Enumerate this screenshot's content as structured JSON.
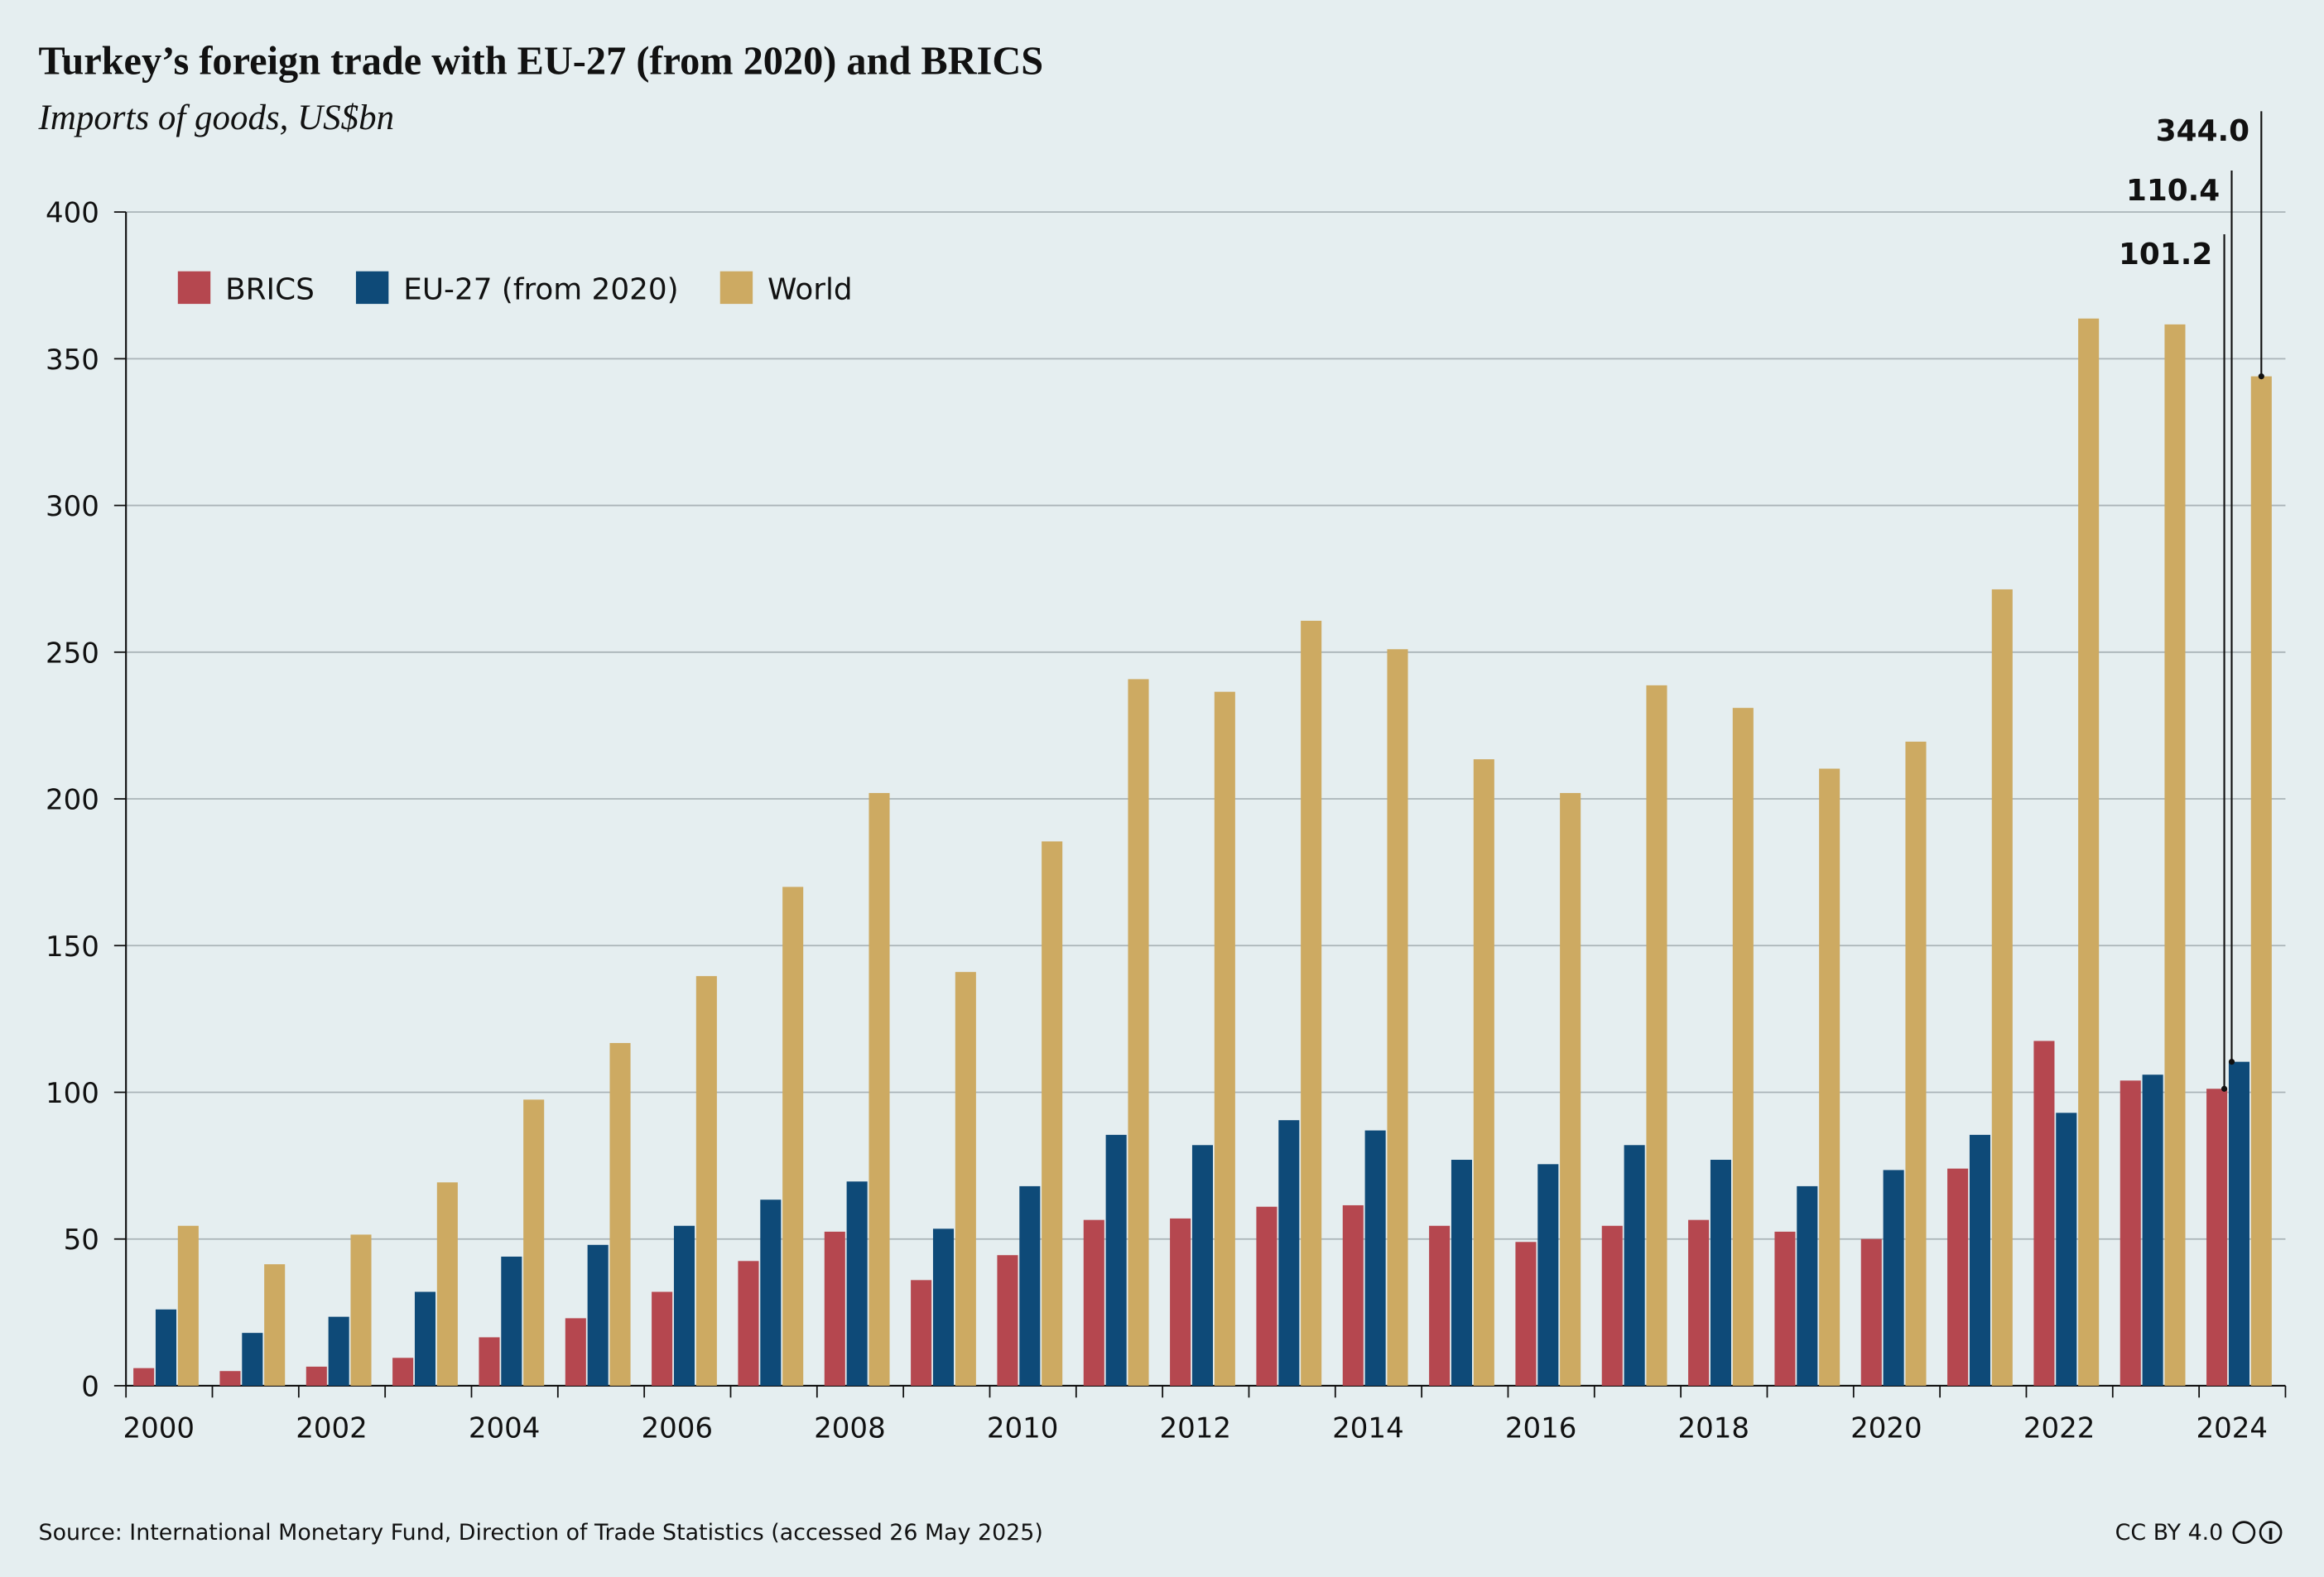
{
  "chart_data": {
    "type": "bar",
    "title": "Turkey’s foreign trade with EU-27 (from 2020) and BRICS",
    "subtitle": "Imports of goods, US$bn",
    "source": "Source: International Monetary Fund, Direction of Trade Statistics (accessed 26 May 2025)",
    "license": "CC BY 4.0",
    "categories": [
      "2000",
      null,
      "2002",
      null,
      "2004",
      null,
      "2006",
      null,
      "2008",
      null,
      "2010",
      null,
      "2012",
      null,
      "2014",
      null,
      "2016",
      null,
      "2018",
      null,
      "2020",
      null,
      "2022",
      null,
      "2024"
    ],
    "series": [
      {
        "name": "BRICS",
        "color": "#b5474f",
        "values": [
          6,
          5,
          6.5,
          9.5,
          16.5,
          23,
          32,
          42.5,
          52.5,
          36,
          44.5,
          56.5,
          57,
          61,
          61.5,
          54.5,
          49,
          54.5,
          56.5,
          52.5,
          50,
          74,
          117.5,
          104,
          101.2
        ],
        "value_labels": [
          null,
          null,
          null,
          null,
          null,
          null,
          null,
          null,
          null,
          null,
          null,
          null,
          null,
          null,
          null,
          null,
          null,
          null,
          null,
          null,
          null,
          null,
          null,
          null,
          "101.2"
        ]
      },
      {
        "name": "EU-27 (from 2020)",
        "color": "#0e4a78",
        "values": [
          26,
          18,
          23.5,
          32,
          44,
          48,
          54.5,
          63.4,
          69.6,
          53.5,
          68,
          85.5,
          82,
          90.5,
          87,
          77,
          75.5,
          82,
          77,
          68,
          73.5,
          85.5,
          93,
          106,
          110.4
        ],
        "value_labels": [
          null,
          null,
          null,
          null,
          null,
          null,
          null,
          null,
          null,
          null,
          null,
          null,
          null,
          null,
          null,
          null,
          null,
          null,
          null,
          null,
          null,
          null,
          null,
          null,
          "110.4"
        ]
      },
      {
        "name": "World",
        "color": "#cdaa62",
        "values": [
          54.5,
          41.4,
          51.5,
          69.3,
          97.5,
          116.8,
          139.6,
          170,
          202,
          141,
          185.5,
          240.8,
          236.5,
          260.7,
          251,
          213.5,
          202,
          238.7,
          231,
          210.3,
          219.5,
          271.4,
          363.7,
          361.7,
          344
        ],
        "value_labels": [
          null,
          null,
          null,
          null,
          null,
          null,
          null,
          null,
          null,
          null,
          null,
          null,
          null,
          null,
          null,
          null,
          null,
          null,
          null,
          null,
          null,
          null,
          null,
          null,
          "344.0"
        ]
      }
    ],
    "ylim": [
      0,
      400
    ],
    "yticks": [
      0,
      50,
      100,
      150,
      200,
      250,
      300,
      350,
      400
    ],
    "grid": true,
    "legend": "top-left"
  }
}
